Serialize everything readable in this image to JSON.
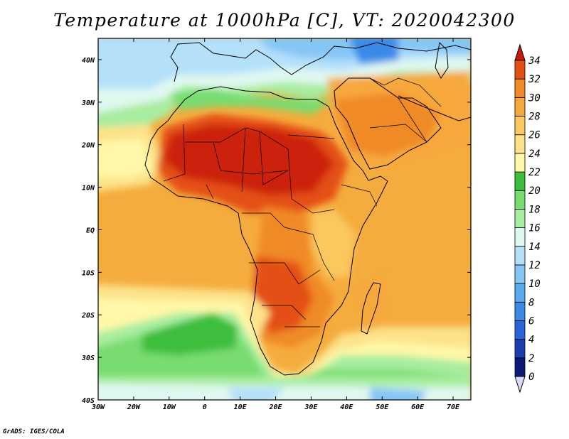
{
  "title": "Temperature at 1000hPa [C], VT: 2020042300",
  "credit": "GrADS: IGES/COLA",
  "map": {
    "projection": "latlon",
    "lon_range": [
      -30,
      75
    ],
    "lat_range": [
      -40,
      45
    ],
    "x_ticks": [
      {
        "value": -30,
        "label": "30W"
      },
      {
        "value": -20,
        "label": "20W"
      },
      {
        "value": -10,
        "label": "10W"
      },
      {
        "value": 0,
        "label": "0"
      },
      {
        "value": 10,
        "label": "10E"
      },
      {
        "value": 20,
        "label": "20E"
      },
      {
        "value": 30,
        "label": "30E"
      },
      {
        "value": 40,
        "label": "40E"
      },
      {
        "value": 50,
        "label": "50E"
      },
      {
        "value": 60,
        "label": "60E"
      },
      {
        "value": 70,
        "label": "70E"
      }
    ],
    "y_ticks": [
      {
        "value": 40,
        "label": "40N"
      },
      {
        "value": 30,
        "label": "30N"
      },
      {
        "value": 20,
        "label": "20N"
      },
      {
        "value": 10,
        "label": "10N"
      },
      {
        "value": 0,
        "label": "EQ"
      },
      {
        "value": -10,
        "label": "10S"
      },
      {
        "value": -20,
        "label": "20S"
      },
      {
        "value": -30,
        "label": "30S"
      },
      {
        "value": -40,
        "label": "40S"
      }
    ]
  },
  "colorbar": {
    "labels": [
      "34",
      "32",
      "30",
      "28",
      "26",
      "24",
      "22",
      "20",
      "18",
      "16",
      "14",
      "12",
      "10",
      "8",
      "6",
      "4",
      "2",
      "0"
    ],
    "levels": [
      0,
      2,
      4,
      6,
      8,
      10,
      12,
      14,
      16,
      18,
      20,
      22,
      24,
      26,
      28,
      30,
      32,
      34
    ],
    "colors": [
      "#0b1a78",
      "#1c3fb0",
      "#2a64d8",
      "#3a8ae8",
      "#5aaaf0",
      "#86c6f6",
      "#b4e0fa",
      "#e0f8f0",
      "#a8eda0",
      "#78dc70",
      "#3cbe3c",
      "#fff8a8",
      "#fde28a",
      "#fbc860",
      "#f7a83c",
      "#f08a28",
      "#e45014",
      "#cc2008"
    ],
    "under_color": "#dcd8f8",
    "over_color": "#c81808"
  }
}
